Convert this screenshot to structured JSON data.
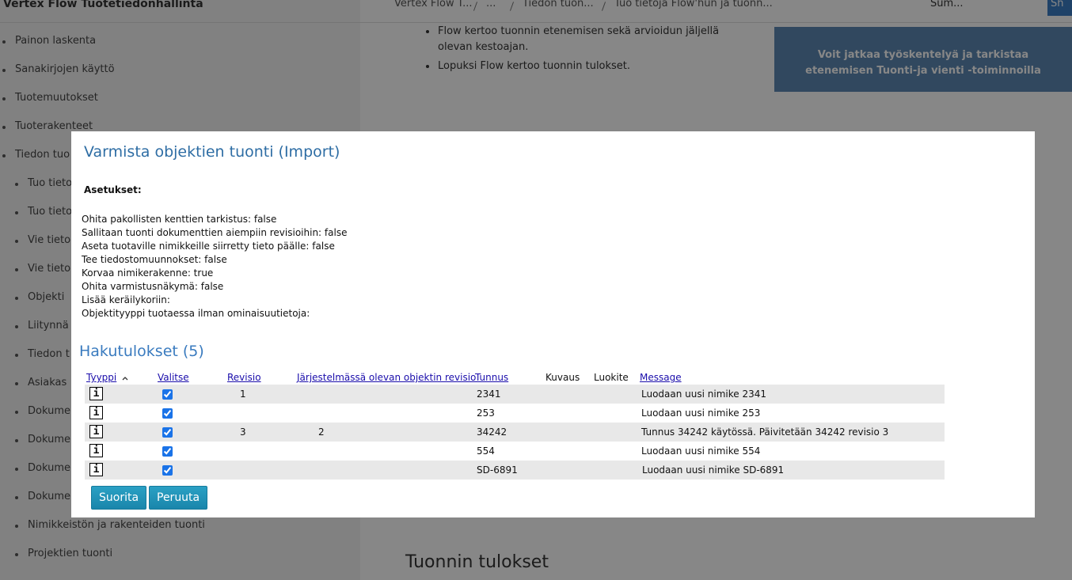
{
  "app_title": "Vertex Flow Tuotetiedonhallinta",
  "breadcrumb": [
    "Vertex Flow T...",
    "...",
    "Tiedon tuon...",
    "Tuo tietoja Flow'hun ja tuonn..."
  ],
  "toolbar": {
    "summary": "Sum...",
    "share": "Sh"
  },
  "sidebar": [
    "Painon laskenta",
    "Sanakirjojen käyttö",
    "Tuotemuutokset",
    "Tuoterakenteet",
    "Tiedon tuo",
    "Tuo tieto",
    "Tuo tieto",
    "Vie tieto",
    "Vie tieto",
    "Objekti",
    "Liitynnä",
    "Tiedon t",
    "Asiakas",
    "Dokume",
    "Dokume",
    "Dokume",
    "Dokume",
    "Nimikkeistön ja rakenteiden tuonti",
    "Projektien tuonti"
  ],
  "content": {
    "bullets": [
      "Flow kertoo tuonnin etenemisen sekä arvioidun jäljellä olevan kestoajan.",
      "Lopuksi Flow kertoo tuonnin tulokset."
    ],
    "heading": "Tuonnin tulokset"
  },
  "notice": "Voit jatkaa työskentelyä ja tarkistaa etenemisen Tuonti-ja vienti -toiminnoilla",
  "dialog": {
    "title": "Varmista objektien tuonti (Import)",
    "settings_heading": "Asetukset:",
    "settings": [
      "Ohita pakollisten kenttien tarkistus: false",
      "Sallitaan tuonti dokumenttien aiempiin revisioihin: false",
      "Aseta tuotaville nimikkeille siirretty tieto päälle: false",
      "Tee tiedostomuunnokset: false",
      "Korvaa nimikerakenne: true",
      "Ohita varmistusnäkymä: false",
      "Lisää keräilykoriin:",
      "Objektityyppi tuotaessa ilman ominaisuutietoja:"
    ],
    "results_heading": "Hakutulokset (5)",
    "table": {
      "headers": {
        "type": "Tyyppi",
        "select": "Valitse",
        "revision": "Revisio",
        "system_revision": "Järjestelmässä olevan objektin revisio",
        "id": "Tunnus",
        "description": "Kuvaus",
        "classification": "Luokite",
        "message": "Message"
      },
      "info_icon": "i",
      "rows": [
        {
          "checked": true,
          "revision": 1,
          "id": "2341",
          "message": "Luodaan uusi nimike 2341"
        },
        {
          "checked": true,
          "id": "253",
          "message": "Luodaan uusi nimike 253"
        },
        {
          "checked": true,
          "revision": 3,
          "system_revision": 2,
          "id": "34242",
          "message": "Tunnus 34242 käytössä. Päivitetään 34242 revisio 3"
        },
        {
          "checked": true,
          "id": "554",
          "message": "Luodaan uusi nimike 554"
        },
        {
          "checked": true,
          "id": "SD-6891",
          "message": "Luodaan uusi nimike SD-6891"
        }
      ]
    },
    "buttons": {
      "run": "Suorita",
      "cancel": "Peruuta"
    }
  }
}
